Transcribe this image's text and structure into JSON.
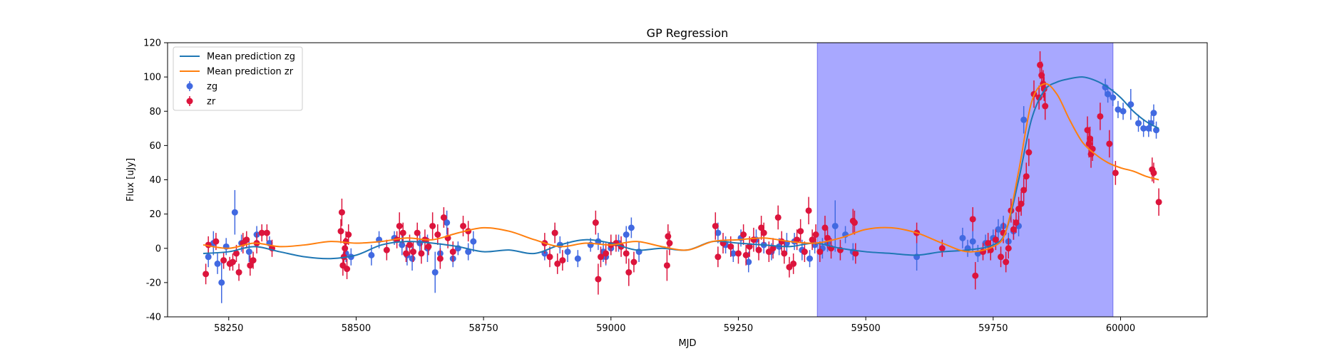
{
  "chart_data": {
    "type": "scatter",
    "title": "GP Regression",
    "xlabel": "MJD",
    "ylabel": "Flux [uJy]",
    "xlim": [
      58130,
      60170
    ],
    "ylim": [
      -40,
      120
    ],
    "xticks": [
      58250,
      58500,
      58750,
      59000,
      59250,
      59500,
      59750,
      60000
    ],
    "yticks": [
      -40,
      -20,
      0,
      20,
      40,
      60,
      80,
      100,
      120
    ],
    "grid": false,
    "legend_position": "top-left",
    "shaded_region": {
      "x": [
        59405,
        59985
      ],
      "color": "#a8a8ff"
    },
    "series": [
      {
        "name": "Mean prediction zg",
        "kind": "line",
        "color": "#1f77b4",
        "x": [
          58200,
          58250,
          58300,
          58350,
          58400,
          58450,
          58500,
          58550,
          58600,
          58650,
          58700,
          58750,
          58800,
          58850,
          58900,
          58950,
          59000,
          59050,
          59100,
          59150,
          59200,
          59250,
          59300,
          59350,
          59400,
          59450,
          59500,
          59550,
          59600,
          59650,
          59700,
          59750,
          59775,
          59800,
          59825,
          59850,
          59875,
          59900,
          59925,
          59950,
          59975,
          60000,
          60025,
          60050,
          60075
        ],
        "y": [
          -3,
          -2,
          1,
          -2,
          -5,
          -6,
          -4,
          2,
          4,
          3,
          1,
          -2,
          -1,
          -3,
          2,
          5,
          3,
          -1,
          0,
          -1,
          4,
          3,
          2,
          1,
          3,
          0,
          -2,
          -3,
          -4,
          -2,
          -1,
          2,
          10,
          40,
          75,
          92,
          97,
          99,
          100,
          98,
          94,
          88,
          80,
          74,
          70
        ]
      },
      {
        "name": "Mean prediction zr",
        "kind": "line",
        "color": "#ff7f0e",
        "x": [
          58200,
          58250,
          58300,
          58350,
          58400,
          58450,
          58500,
          58550,
          58600,
          58650,
          58700,
          58750,
          58800,
          58850,
          58900,
          58950,
          59000,
          59050,
          59100,
          59150,
          59200,
          59250,
          59300,
          59350,
          59400,
          59450,
          59500,
          59550,
          59600,
          59650,
          59700,
          59750,
          59775,
          59800,
          59825,
          59850,
          59875,
          59900,
          59925,
          59950,
          59975,
          60000,
          60025,
          60050,
          60075
        ],
        "y": [
          2,
          0,
          3,
          1,
          2,
          4,
          3,
          4,
          6,
          5,
          9,
          12,
          10,
          5,
          1,
          3,
          2,
          4,
          1,
          -1,
          4,
          5,
          6,
          4,
          3,
          6,
          11,
          12,
          9,
          3,
          -2,
          1,
          10,
          45,
          85,
          96,
          90,
          75,
          62,
          55,
          50,
          47,
          45,
          42,
          40
        ]
      },
      {
        "name": "zg",
        "kind": "errorbar",
        "color": "#4169e1",
        "points": [
          [
            58210,
            -5,
            6
          ],
          [
            58220,
            3,
            7
          ],
          [
            58228,
            -9,
            6
          ],
          [
            58236,
            -20,
            12
          ],
          [
            58245,
            1,
            5
          ],
          [
            58262,
            21,
            13
          ],
          [
            58275,
            3,
            5
          ],
          [
            58290,
            -2,
            6
          ],
          [
            58305,
            8,
            5
          ],
          [
            58330,
            3,
            4
          ],
          [
            58480,
            -3,
            5
          ],
          [
            58490,
            -5,
            5
          ],
          [
            58530,
            -4,
            6
          ],
          [
            58545,
            5,
            5
          ],
          [
            58575,
            6,
            4
          ],
          [
            58590,
            2,
            6
          ],
          [
            58600,
            -4,
            6
          ],
          [
            58610,
            -6,
            7
          ],
          [
            58625,
            3,
            5
          ],
          [
            58640,
            0,
            8
          ],
          [
            58655,
            -14,
            12
          ],
          [
            58665,
            -3,
            6
          ],
          [
            58678,
            15,
            7
          ],
          [
            58690,
            -6,
            5
          ],
          [
            58700,
            0,
            4
          ],
          [
            58720,
            -2,
            5
          ],
          [
            58730,
            4,
            6
          ],
          [
            58870,
            -3,
            4
          ],
          [
            58890,
            9,
            4
          ],
          [
            58900,
            2,
            5
          ],
          [
            58915,
            -2,
            6
          ],
          [
            58935,
            -6,
            5
          ],
          [
            58960,
            2,
            4
          ],
          [
            58975,
            4,
            5
          ],
          [
            58985,
            -2,
            6
          ],
          [
            58990,
            -5,
            5
          ],
          [
            59000,
            0,
            4
          ],
          [
            59015,
            3,
            5
          ],
          [
            59030,
            8,
            5
          ],
          [
            59040,
            12,
            6
          ],
          [
            59055,
            -2,
            6
          ],
          [
            59210,
            9,
            6
          ],
          [
            59225,
            2,
            5
          ],
          [
            59240,
            -3,
            5
          ],
          [
            59255,
            6,
            5
          ],
          [
            59270,
            -8,
            6
          ],
          [
            59285,
            5,
            6
          ],
          [
            59300,
            2,
            5
          ],
          [
            59315,
            -2,
            5
          ],
          [
            59330,
            1,
            5
          ],
          [
            59345,
            3,
            6
          ],
          [
            59360,
            4,
            5
          ],
          [
            59375,
            -1,
            6
          ],
          [
            59390,
            -6,
            5
          ],
          [
            59400,
            2,
            5
          ],
          [
            59415,
            0,
            6
          ],
          [
            59425,
            3,
            5
          ],
          [
            59440,
            13,
            15
          ],
          [
            59460,
            8,
            5
          ],
          [
            59475,
            -2,
            5
          ],
          [
            59600,
            -5,
            8
          ],
          [
            59690,
            6,
            6
          ],
          [
            59700,
            0,
            5
          ],
          [
            59710,
            4,
            6
          ],
          [
            59720,
            -3,
            5
          ],
          [
            59735,
            3,
            5
          ],
          [
            59750,
            6,
            5
          ],
          [
            59760,
            11,
            6
          ],
          [
            59770,
            13,
            6
          ],
          [
            59780,
            4,
            5
          ],
          [
            59790,
            10,
            5
          ],
          [
            59800,
            13,
            6
          ],
          [
            59810,
            75,
            8
          ],
          [
            59970,
            94,
            5
          ],
          [
            59975,
            90,
            5
          ],
          [
            59985,
            88,
            5
          ],
          [
            59995,
            81,
            5
          ],
          [
            60005,
            80,
            5
          ],
          [
            60020,
            84,
            9
          ],
          [
            60035,
            73,
            5
          ],
          [
            60045,
            70,
            5
          ],
          [
            60055,
            70,
            5
          ],
          [
            60060,
            73,
            5
          ],
          [
            60065,
            79,
            5
          ],
          [
            60070,
            69,
            5
          ]
        ]
      },
      {
        "name": "zr",
        "kind": "errorbar",
        "color": "#dc143c",
        "points": [
          [
            58205,
            -15,
            6
          ],
          [
            58210,
            2,
            5
          ],
          [
            58225,
            4,
            5
          ],
          [
            58240,
            -7,
            5
          ],
          [
            58252,
            -9,
            4
          ],
          [
            58258,
            -8,
            5
          ],
          [
            58265,
            -3,
            5
          ],
          [
            58270,
            -14,
            5
          ],
          [
            58278,
            3,
            6
          ],
          [
            58285,
            5,
            5
          ],
          [
            58292,
            -10,
            6
          ],
          [
            58298,
            -7,
            5
          ],
          [
            58305,
            3,
            6
          ],
          [
            58315,
            9,
            5
          ],
          [
            58325,
            9,
            5
          ],
          [
            58335,
            0,
            5
          ],
          [
            58470,
            10,
            7
          ],
          [
            58472,
            21,
            8
          ],
          [
            58474,
            -10,
            6
          ],
          [
            58476,
            -5,
            5
          ],
          [
            58478,
            0,
            6
          ],
          [
            58480,
            4,
            6
          ],
          [
            58482,
            -12,
            6
          ],
          [
            58485,
            8,
            6
          ],
          [
            58560,
            -1,
            6
          ],
          [
            58580,
            5,
            5
          ],
          [
            58585,
            13,
            8
          ],
          [
            58592,
            9,
            6
          ],
          [
            58598,
            -3,
            5
          ],
          [
            58605,
            2,
            6
          ],
          [
            58612,
            -2,
            6
          ],
          [
            58620,
            9,
            6
          ],
          [
            58628,
            -3,
            6
          ],
          [
            58635,
            5,
            6
          ],
          [
            58642,
            1,
            5
          ],
          [
            58650,
            13,
            8
          ],
          [
            58660,
            8,
            6
          ],
          [
            58665,
            -6,
            6
          ],
          [
            58672,
            18,
            6
          ],
          [
            58680,
            6,
            6
          ],
          [
            58690,
            -2,
            6
          ],
          [
            58710,
            13,
            6
          ],
          [
            58720,
            10,
            6
          ],
          [
            58870,
            3,
            6
          ],
          [
            58880,
            -5,
            6
          ],
          [
            58890,
            9,
            6
          ],
          [
            58895,
            -9,
            6
          ],
          [
            58905,
            -7,
            6
          ],
          [
            58970,
            15,
            7
          ],
          [
            58975,
            -18,
            9
          ],
          [
            58980,
            -5,
            6
          ],
          [
            58990,
            -3,
            6
          ],
          [
            59000,
            2,
            6
          ],
          [
            59010,
            3,
            5
          ],
          [
            59020,
            1,
            6
          ],
          [
            59030,
            -3,
            6
          ],
          [
            59035,
            -14,
            8
          ],
          [
            59045,
            -8,
            6
          ],
          [
            59110,
            -10,
            9
          ],
          [
            59112,
            7,
            7
          ],
          [
            59115,
            3,
            7
          ],
          [
            59205,
            13,
            8
          ],
          [
            59210,
            -5,
            6
          ],
          [
            59220,
            3,
            6
          ],
          [
            59235,
            1,
            6
          ],
          [
            59250,
            -3,
            6
          ],
          [
            59260,
            8,
            6
          ],
          [
            59265,
            -4,
            6
          ],
          [
            59272,
            1,
            6
          ],
          [
            59280,
            5,
            7
          ],
          [
            59290,
            -1,
            6
          ],
          [
            59295,
            12,
            7
          ],
          [
            59300,
            9,
            6
          ],
          [
            59310,
            -2,
            6
          ],
          [
            59318,
            0,
            6
          ],
          [
            59328,
            18,
            7
          ],
          [
            59335,
            4,
            6
          ],
          [
            59340,
            -3,
            6
          ],
          [
            59350,
            -11,
            6
          ],
          [
            59358,
            -9,
            6
          ],
          [
            59365,
            5,
            6
          ],
          [
            59372,
            10,
            7
          ],
          [
            59380,
            -2,
            6
          ],
          [
            59388,
            22,
            8
          ],
          [
            59395,
            5,
            6
          ],
          [
            59402,
            8,
            6
          ],
          [
            59410,
            -2,
            6
          ],
          [
            59420,
            12,
            7
          ],
          [
            59425,
            6,
            6
          ],
          [
            59432,
            0,
            6
          ],
          [
            59450,
            -1,
            6
          ],
          [
            59475,
            16,
            7
          ],
          [
            59478,
            15,
            7
          ],
          [
            59480,
            -3,
            6
          ],
          [
            59600,
            9,
            6
          ],
          [
            59650,
            0,
            5
          ],
          [
            59710,
            17,
            7
          ],
          [
            59715,
            -16,
            8
          ],
          [
            59730,
            -2,
            5
          ],
          [
            59740,
            3,
            6
          ],
          [
            59745,
            -1,
            6
          ],
          [
            59755,
            5,
            6
          ],
          [
            59765,
            -5,
            6
          ],
          [
            59770,
            9,
            6
          ],
          [
            59775,
            -8,
            6
          ],
          [
            59780,
            0,
            6
          ],
          [
            59785,
            22,
            7
          ],
          [
            59790,
            11,
            6
          ],
          [
            59795,
            15,
            6
          ],
          [
            59800,
            23,
            7
          ],
          [
            59805,
            26,
            7
          ],
          [
            59810,
            34,
            7
          ],
          [
            59815,
            42,
            8
          ],
          [
            59820,
            56,
            8
          ],
          [
            59830,
            90,
            8
          ],
          [
            59840,
            88,
            7
          ],
          [
            59842,
            107,
            8
          ],
          [
            59845,
            101,
            8
          ],
          [
            59848,
            96,
            8
          ],
          [
            59850,
            93,
            7
          ],
          [
            59852,
            83,
            8
          ],
          [
            59935,
            69,
            8
          ],
          [
            59938,
            61,
            8
          ],
          [
            59940,
            64,
            7
          ],
          [
            59942,
            55,
            8
          ],
          [
            59945,
            58,
            7
          ],
          [
            59960,
            77,
            8
          ],
          [
            59978,
            61,
            8
          ],
          [
            59990,
            44,
            7
          ],
          [
            60062,
            46,
            7
          ],
          [
            60065,
            44,
            6
          ],
          [
            60075,
            27,
            8
          ]
        ]
      }
    ]
  }
}
